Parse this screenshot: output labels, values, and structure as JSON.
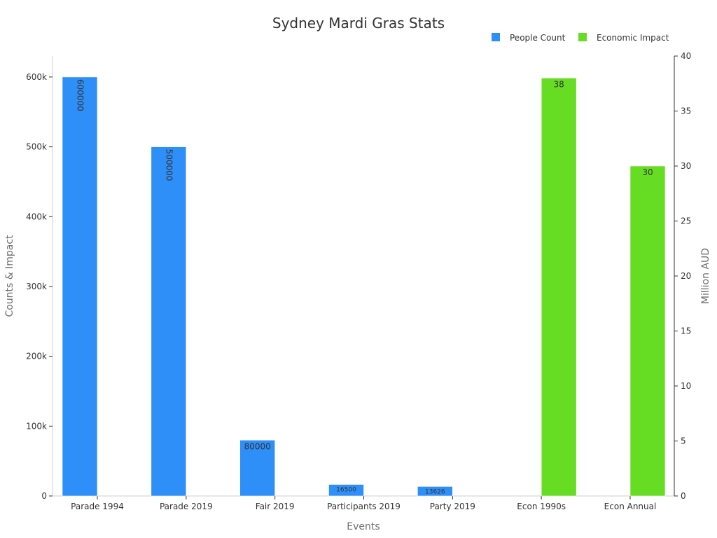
{
  "chart_data": {
    "type": "bar",
    "title": "Sydney Mardi Gras Stats",
    "xlabel": "Events",
    "ylabel": "Counts & Impact",
    "y2label": "Million AUD",
    "categories": [
      "Parade 1994",
      "Parade 2019",
      "Fair 2019",
      "Participants 2019",
      "Party 2019",
      "Econ 1990s",
      "Econ Annual"
    ],
    "ylim": [
      0,
      630000
    ],
    "y2lim": [
      0,
      40
    ],
    "yticks": [
      "0",
      "100k",
      "200k",
      "300k",
      "400k",
      "500k",
      "600k"
    ],
    "y2ticks": [
      "0",
      "5",
      "10",
      "15",
      "20",
      "25",
      "30",
      "35",
      "40"
    ],
    "legend_position": "top-right",
    "series": [
      {
        "name": "People Count",
        "axis": "left",
        "color": "#2f8ff8",
        "values": [
          600000,
          500000,
          80000,
          16500,
          13626,
          null,
          null
        ],
        "labels": [
          "600000",
          "500000",
          "80000",
          "16500",
          "13626",
          "",
          ""
        ]
      },
      {
        "name": "Economic Impact",
        "axis": "right",
        "color": "#66dd22",
        "values": [
          null,
          null,
          null,
          null,
          null,
          38,
          30
        ],
        "labels": [
          "",
          "",
          "",
          "",
          "",
          "38",
          "30"
        ]
      }
    ]
  }
}
